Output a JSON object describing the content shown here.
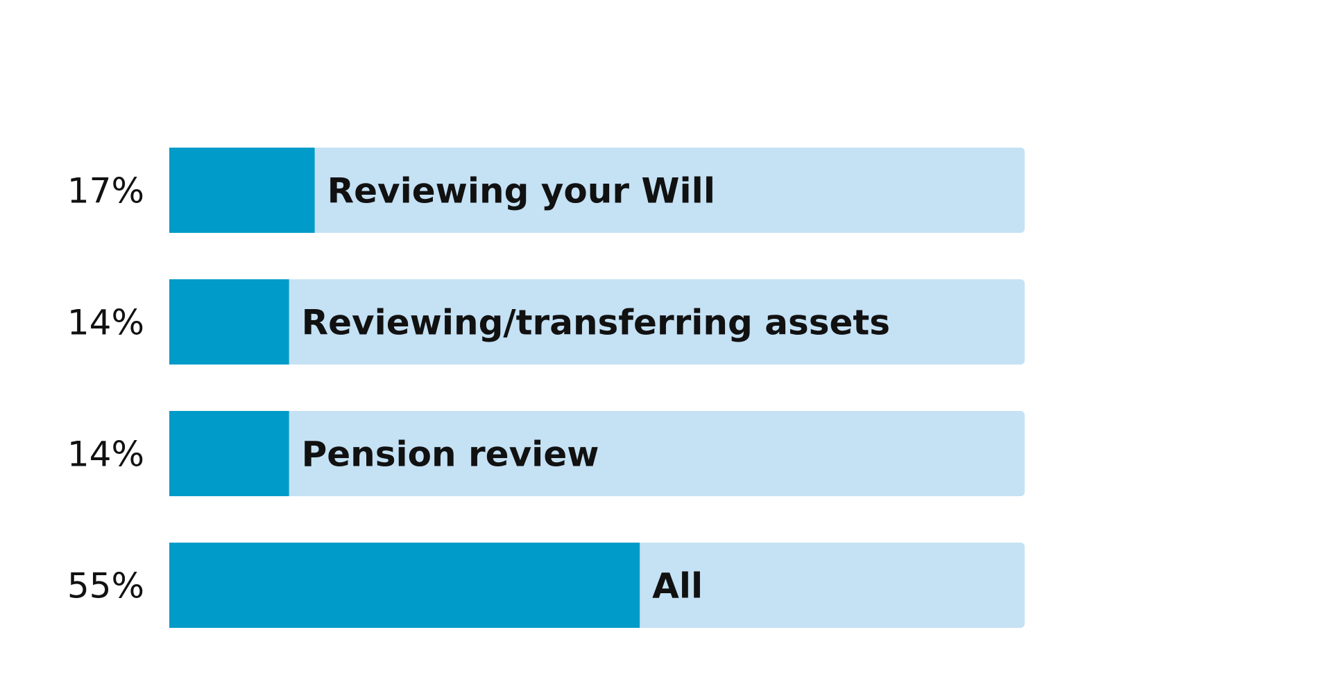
{
  "colors": {
    "bar_fill": "#009bc8",
    "bar_track": "#c5e1f4",
    "text": "#111111"
  },
  "chart_data": {
    "type": "bar",
    "orientation": "horizontal",
    "categories": [
      "Reviewing your Will",
      "Reviewing/transferring assets",
      "Pension review",
      "All"
    ],
    "values": [
      17,
      14,
      14,
      55
    ],
    "value_labels": [
      "17%",
      "14%",
      "14%",
      "55%"
    ],
    "xlim": [
      0,
      100
    ],
    "unit": "%",
    "grid": false,
    "legend": "none"
  }
}
